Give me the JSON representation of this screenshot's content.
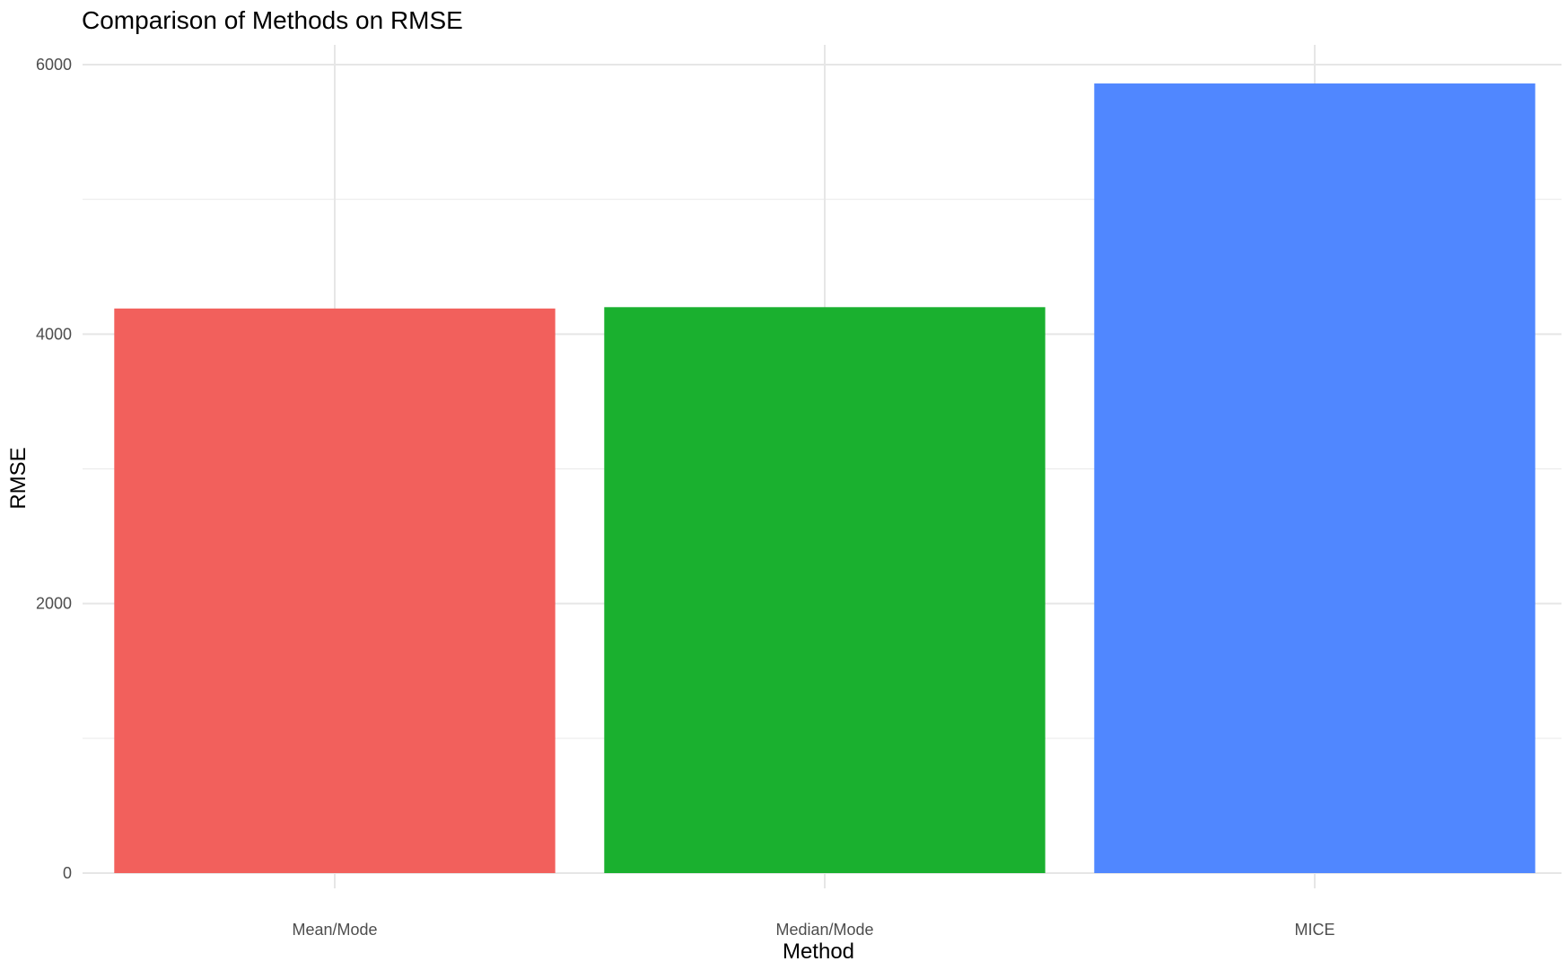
{
  "chart_data": {
    "type": "bar",
    "title": "Comparison of Methods on RMSE",
    "xlabel": "Method",
    "ylabel": "RMSE",
    "categories": [
      "Mean/Mode",
      "Median/Mode",
      "MICE"
    ],
    "values": [
      4190,
      4200,
      5860
    ],
    "colors": [
      "#F2605C",
      "#1AB02F",
      "#5087FF"
    ],
    "ylim": [
      0,
      6150
    ],
    "yticks": [
      0,
      2000,
      4000,
      6000
    ],
    "yminor": [
      1000,
      3000,
      5000
    ],
    "grid": true,
    "legend": "none"
  }
}
